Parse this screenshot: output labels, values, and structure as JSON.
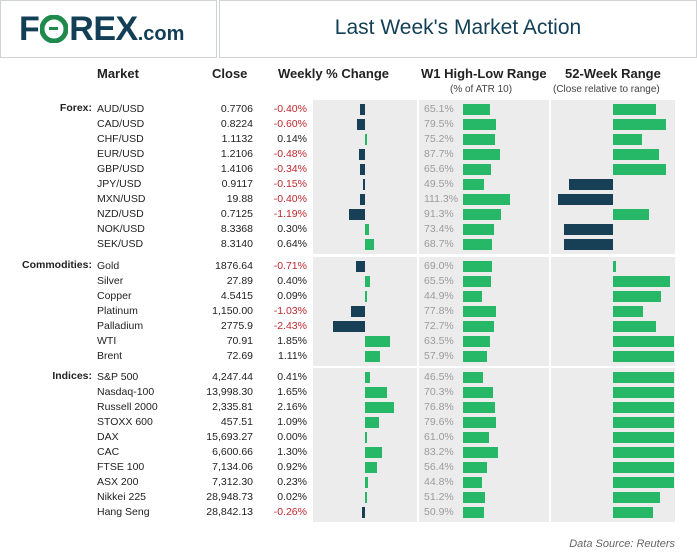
{
  "header": {
    "logo_text_1": "F",
    "logo_text_2": "REX",
    "logo_domain": ".com",
    "title": "Last Week's Market Action"
  },
  "columns": {
    "market": "Market",
    "close": "Close",
    "weekly": "Weekly % Change",
    "w1_range": "W1 High-Low Range",
    "w1_sub": "(% of ATR 10)",
    "range52": "52-Week Range",
    "range52_sub": "(Close relative to range)"
  },
  "sections": [
    {
      "label": "Forex:",
      "rows": [
        {
          "market": "AUD/USD",
          "close": "0.7706",
          "change": "-0.40%",
          "change_val": -0.4,
          "w1": "65.1%",
          "w1_val": 65.1,
          "r52": 0.56
        },
        {
          "market": "CAD/USD",
          "close": "0.8224",
          "change": "-0.60%",
          "change_val": -0.6,
          "w1": "79.5%",
          "w1_val": 79.5,
          "r52": 0.7
        },
        {
          "market": "CHF/USD",
          "close": "1.1132",
          "change": "0.14%",
          "change_val": 0.14,
          "w1": "75.2%",
          "w1_val": 75.2,
          "r52": 0.38
        },
        {
          "market": "EUR/USD",
          "close": "1.2106",
          "change": "-0.48%",
          "change_val": -0.48,
          "w1": "87.7%",
          "w1_val": 87.7,
          "r52": 0.6
        },
        {
          "market": "GBP/USD",
          "close": "1.4106",
          "change": "-0.34%",
          "change_val": -0.34,
          "w1": "65.6%",
          "w1_val": 65.6,
          "r52": 0.7
        },
        {
          "market": "JPY/USD",
          "close": "0.9117",
          "change": "-0.15%",
          "change_val": -0.15,
          "w1": "49.5%",
          "w1_val": 49.5,
          "r52": -0.58
        },
        {
          "market": "MXN/USD",
          "close": "19.88",
          "change": "-0.40%",
          "change_val": -0.4,
          "w1": "111.3%",
          "w1_val": 111.3,
          "r52": -0.72
        },
        {
          "market": "NZD/USD",
          "close": "0.7125",
          "change": "-1.19%",
          "change_val": -1.19,
          "w1": "91.3%",
          "w1_val": 91.3,
          "r52": 0.48
        },
        {
          "market": "NOK/USD",
          "close": "8.3368",
          "change": "0.30%",
          "change_val": 0.3,
          "w1": "73.4%",
          "w1_val": 73.4,
          "r52": -0.65
        },
        {
          "market": "SEK/USD",
          "close": "8.3140",
          "change": "0.64%",
          "change_val": 0.64,
          "w1": "68.7%",
          "w1_val": 68.7,
          "r52": -0.65
        }
      ]
    },
    {
      "label": "Commodities:",
      "rows": [
        {
          "market": "Gold",
          "close": "1876.64",
          "change": "-0.71%",
          "change_val": -0.71,
          "w1": "69.0%",
          "w1_val": 69.0,
          "r52": 0.04
        },
        {
          "market": "Silver",
          "close": "27.89",
          "change": "0.40%",
          "change_val": 0.4,
          "w1": "65.5%",
          "w1_val": 65.5,
          "r52": 0.75
        },
        {
          "market": "Copper",
          "close": "4.5415",
          "change": "0.09%",
          "change_val": 0.09,
          "w1": "44.9%",
          "w1_val": 44.9,
          "r52": 0.63
        },
        {
          "market": "Platinum",
          "close": "1,150.00",
          "change": "-1.03%",
          "change_val": -1.03,
          "w1": "77.8%",
          "w1_val": 77.8,
          "r52": 0.4
        },
        {
          "market": "Palladium",
          "close": "2775.9",
          "change": "-2.43%",
          "change_val": -2.43,
          "w1": "72.7%",
          "w1_val": 72.7,
          "r52": 0.57
        },
        {
          "market": "WTI",
          "close": "70.91",
          "change": "1.85%",
          "change_val": 1.85,
          "w1": "63.5%",
          "w1_val": 63.5,
          "r52": 0.8
        },
        {
          "market": "Brent",
          "close": "72.69",
          "change": "1.11%",
          "change_val": 1.11,
          "w1": "57.9%",
          "w1_val": 57.9,
          "r52": 0.8
        }
      ]
    },
    {
      "label": "Indices:",
      "rows": [
        {
          "market": "S&P 500",
          "close": "4,247.44",
          "change": "0.41%",
          "change_val": 0.41,
          "w1": "46.5%",
          "w1_val": 46.5,
          "r52": 0.8
        },
        {
          "market": "Nasdaq-100",
          "close": "13,998.30",
          "change": "1.65%",
          "change_val": 1.65,
          "w1": "70.3%",
          "w1_val": 70.3,
          "r52": 0.8
        },
        {
          "market": "Russell 2000",
          "close": "2,335.81",
          "change": "2.16%",
          "change_val": 2.16,
          "w1": "76.8%",
          "w1_val": 76.8,
          "r52": 0.8
        },
        {
          "market": "STOXX 600",
          "close": "457.51",
          "change": "1.09%",
          "change_val": 1.09,
          "w1": "79.6%",
          "w1_val": 79.6,
          "r52": 0.8
        },
        {
          "market": "DAX",
          "close": "15,693.27",
          "change": "0.00%",
          "change_val": 0.0,
          "w1": "61.0%",
          "w1_val": 61.0,
          "r52": 0.8
        },
        {
          "market": "CAC",
          "close": "6,600.66",
          "change": "1.30%",
          "change_val": 1.3,
          "w1": "83.2%",
          "w1_val": 83.2,
          "r52": 0.8
        },
        {
          "market": "FTSE 100",
          "close": "7,134.06",
          "change": "0.92%",
          "change_val": 0.92,
          "w1": "56.4%",
          "w1_val": 56.4,
          "r52": 0.8
        },
        {
          "market": "ASX 200",
          "close": "7,312.30",
          "change": "0.23%",
          "change_val": 0.23,
          "w1": "44.8%",
          "w1_val": 44.8,
          "r52": 0.8
        },
        {
          "market": "Nikkei 225",
          "close": "28,948.73",
          "change": "0.02%",
          "change_val": 0.02,
          "w1": "51.2%",
          "w1_val": 51.2,
          "r52": 0.62
        },
        {
          "market": "Hang Seng",
          "close": "28,842.13",
          "change": "-0.26%",
          "change_val": -0.26,
          "w1": "50.9%",
          "w1_val": 50.9,
          "r52": 0.52
        }
      ]
    }
  ],
  "footer": {
    "source": "Data Source: Reuters"
  },
  "colors": {
    "positive": "#27b867",
    "negative": "#173f55",
    "neg_text": "#c0282d",
    "brand_green": "#1f8a4c",
    "brand_navy": "#123f55"
  }
}
